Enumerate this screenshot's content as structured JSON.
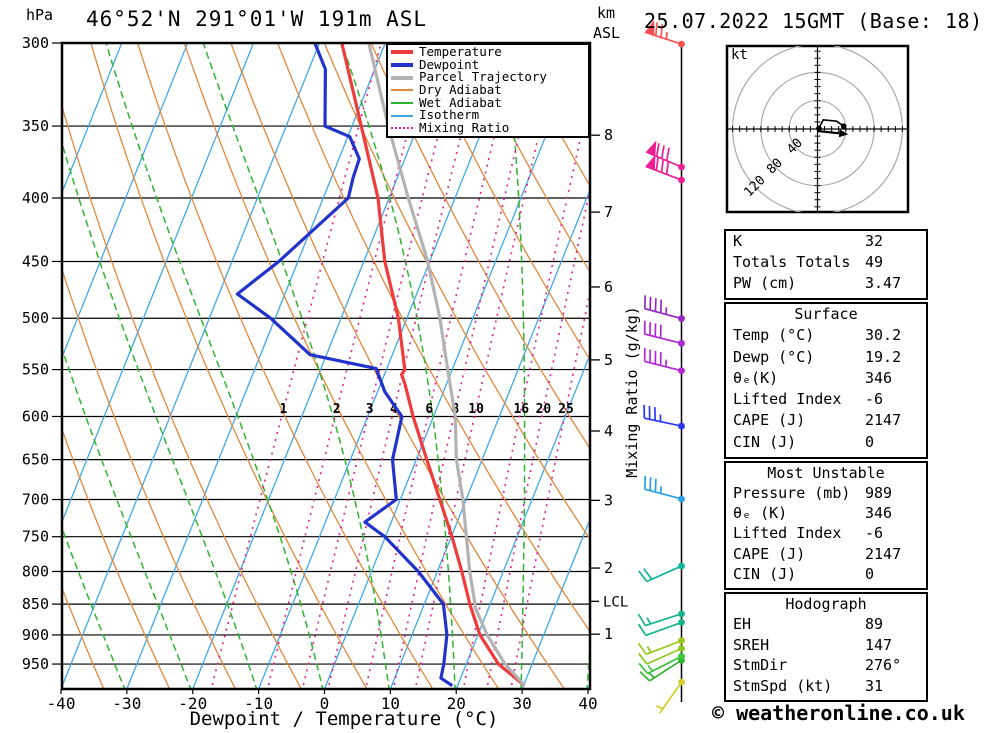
{
  "header": {
    "pressure_unit": "hPa",
    "station_title": "46°52'N 291°01'W 191m ASL",
    "altitude_unit_line1": "km",
    "altitude_unit_line2": "ASL",
    "datetime": "25.07.2022 15GMT (Base: 18)"
  },
  "footer": {
    "copyright": "© weatheronline.co.uk"
  },
  "legend": {
    "items": [
      {
        "label": "Temperature",
        "color": "#ee3b3b",
        "thickness": 4,
        "style": "solid"
      },
      {
        "label": "Dewpoint",
        "color": "#2233cc",
        "thickness": 4,
        "style": "solid"
      },
      {
        "label": "Parcel Trajectory",
        "color": "#b3b3b3",
        "thickness": 4,
        "style": "solid"
      },
      {
        "label": "Dry Adiabat",
        "color": "#e0883c",
        "thickness": 2,
        "style": "solid"
      },
      {
        "label": "Wet Adiabat",
        "color": "#2fb42f",
        "thickness": 2,
        "style": "solid"
      },
      {
        "label": "Isotherm",
        "color": "#41a8e6",
        "thickness": 2,
        "style": "solid"
      },
      {
        "label": "Mixing Ratio",
        "color": "#e0218e",
        "thickness": 2,
        "style": "dotted"
      }
    ]
  },
  "axes": {
    "x_label": "Dewpoint / Temperature (°C)",
    "x_ticks": [
      -40,
      -30,
      -20,
      -10,
      0,
      10,
      20,
      30,
      40
    ],
    "pressure_ticks": [
      300,
      350,
      400,
      450,
      500,
      550,
      600,
      650,
      700,
      750,
      800,
      850,
      900,
      950
    ],
    "km_ticks": [
      1,
      2,
      3,
      4,
      5,
      6,
      7,
      8
    ],
    "mixing_axis_label": "Mixing Ratio (g/kg)",
    "mixing_ratio_values": [
      1,
      2,
      3,
      4,
      6,
      8,
      10,
      16,
      20,
      25
    ],
    "lcl_label": "LCL",
    "lcl_km": 1.5
  },
  "chart_data": {
    "type": "line",
    "variant": "skew-t-log-p",
    "title": "46°52'N 291°01'W 191m ASL",
    "xlabel": "Dewpoint / Temperature (°C)",
    "ylabel": "hPa",
    "xlim": [
      -40,
      40
    ],
    "pressure_range_hpa": [
      300,
      1000
    ],
    "series": [
      {
        "name": "Temperature",
        "color": "#ee3b3b",
        "width": 3.2,
        "points_p_t": [
          [
            989,
            30.2
          ],
          [
            950,
            24.9
          ],
          [
            900,
            20.3
          ],
          [
            850,
            16.9
          ],
          [
            800,
            13.7
          ],
          [
            750,
            10.1
          ],
          [
            700,
            6.0
          ],
          [
            650,
            1.6
          ],
          [
            600,
            -3.1
          ],
          [
            565,
            -6.3
          ],
          [
            555,
            -7.4
          ],
          [
            550,
            -7.2
          ],
          [
            500,
            -11.3
          ],
          [
            450,
            -16.8
          ],
          [
            400,
            -21.7
          ],
          [
            350,
            -28.6
          ],
          [
            300,
            -36.6
          ]
        ]
      },
      {
        "name": "Dewpoint",
        "color": "#2233cc",
        "width": 3.2,
        "points_p_t": [
          [
            989,
            19.2
          ],
          [
            975,
            17.0
          ],
          [
            950,
            16.6
          ],
          [
            900,
            15.3
          ],
          [
            850,
            12.9
          ],
          [
            800,
            7.1
          ],
          [
            750,
            -0.1
          ],
          [
            730,
            -4.0
          ],
          [
            700,
            -0.6
          ],
          [
            650,
            -3.6
          ],
          [
            600,
            -4.8
          ],
          [
            573,
            -8.9
          ],
          [
            549,
            -11.6
          ],
          [
            535,
            -22.5
          ],
          [
            500,
            -30.7
          ],
          [
            478,
            -37.2
          ],
          [
            450,
            -32.9
          ],
          [
            400,
            -26.2
          ],
          [
            385,
            -26.7
          ],
          [
            372,
            -26.9
          ],
          [
            357,
            -29.7
          ],
          [
            350,
            -34.1
          ],
          [
            315,
            -37.5
          ],
          [
            300,
            -40.7
          ]
        ]
      },
      {
        "name": "Parcel Trajectory",
        "color": "#b3b3b3",
        "width": 3.2,
        "points_p_t": [
          [
            989,
            30.2
          ],
          [
            950,
            25.9
          ],
          [
            900,
            21.4
          ],
          [
            855,
            17.9
          ],
          [
            850,
            17.7
          ],
          [
            800,
            14.9
          ],
          [
            750,
            12.3
          ],
          [
            700,
            9.5
          ],
          [
            650,
            6.1
          ],
          [
            600,
            3.3
          ],
          [
            550,
            -0.7
          ],
          [
            500,
            -5.0
          ],
          [
            450,
            -10.3
          ],
          [
            400,
            -17.1
          ],
          [
            350,
            -24.5
          ],
          [
            300,
            -32.5
          ]
        ]
      }
    ]
  },
  "wind_barbs": {
    "unit": "kt",
    "levels": [
      {
        "alt_km": 0.26,
        "speed_kt": 5,
        "dir_deg": 215,
        "color": "#d4cc28"
      },
      {
        "alt_km": 0.6,
        "speed_kt": 15,
        "dir_deg": 237,
        "color": "#2fb42f"
      },
      {
        "alt_km": 0.66,
        "speed_kt": 15,
        "dir_deg": 243,
        "color": "#3cc43c"
      },
      {
        "alt_km": 0.78,
        "speed_kt": 10,
        "dir_deg": 246,
        "color": "#8cc81e"
      },
      {
        "alt_km": 0.9,
        "speed_kt": 15,
        "dir_deg": 249,
        "color": "#96c81e"
      },
      {
        "alt_km": 1.18,
        "speed_kt": 10,
        "dir_deg": 250,
        "color": "#14b48c"
      },
      {
        "alt_km": 1.31,
        "speed_kt": 15,
        "dir_deg": 252,
        "color": "#14b48c"
      },
      {
        "alt_km": 2.03,
        "speed_kt": 20,
        "dir_deg": 246,
        "color": "#10b49b"
      },
      {
        "alt_km": 3.02,
        "speed_kt": 35,
        "dir_deg": 285,
        "color": "#28a0e6"
      },
      {
        "alt_km": 4.07,
        "speed_kt": 35,
        "dir_deg": 282,
        "color": "#2837f0"
      },
      {
        "alt_km": 4.85,
        "speed_kt": 45,
        "dir_deg": 284,
        "color": "#b428dc"
      },
      {
        "alt_km": 5.23,
        "speed_kt": 40,
        "dir_deg": 284,
        "color": "#aa28d2"
      },
      {
        "alt_km": 5.57,
        "speed_kt": 45,
        "dir_deg": 285,
        "color": "#9628c8"
      },
      {
        "alt_km": 7.42,
        "speed_kt": 80,
        "dir_deg": 291,
        "color": "#f01e96"
      },
      {
        "alt_km": 7.59,
        "speed_kt": 80,
        "dir_deg": 293,
        "color": "#f01e96"
      },
      {
        "alt_km": 9.15,
        "speed_kt": 75,
        "dir_deg": 288,
        "color": "#f85050"
      }
    ]
  },
  "hodograph": {
    "unit_label": "kt",
    "ring_labels": [
      40,
      80,
      120
    ],
    "ring_step_kt": 10,
    "trace_uv_kt": [
      [
        2,
        1
      ],
      [
        8,
        13
      ],
      [
        27,
        11
      ],
      [
        37,
        4
      ]
    ],
    "storm_motion": {
      "dir_deg": 276,
      "speed_kt": 31
    }
  },
  "tables": [
    {
      "title": "",
      "rows": [
        [
          "K",
          "32"
        ],
        [
          "Totals Totals",
          "49"
        ],
        [
          "PW (cm)",
          "3.47"
        ]
      ]
    },
    {
      "title": "Surface",
      "rows": [
        [
          "Temp (°C)",
          "30.2"
        ],
        [
          "Dewp (°C)",
          "19.2"
        ],
        [
          "θₑ(K)",
          "346"
        ],
        [
          "Lifted Index",
          "-6"
        ],
        [
          "CAPE (J)",
          "2147"
        ],
        [
          "CIN (J)",
          "0"
        ]
      ]
    },
    {
      "title": "Most Unstable",
      "rows": [
        [
          "Pressure (mb)",
          "989"
        ],
        [
          "θₑ (K)",
          "346"
        ],
        [
          "Lifted Index",
          "-6"
        ],
        [
          "CAPE (J)",
          "2147"
        ],
        [
          "CIN (J)",
          "0"
        ]
      ]
    },
    {
      "title": "Hodograph",
      "rows": [
        [
          "EH",
          "89"
        ],
        [
          "SREH",
          "147"
        ],
        [
          "StmDir",
          "276°"
        ],
        [
          "StmSpd (kt)",
          "31"
        ]
      ]
    }
  ]
}
